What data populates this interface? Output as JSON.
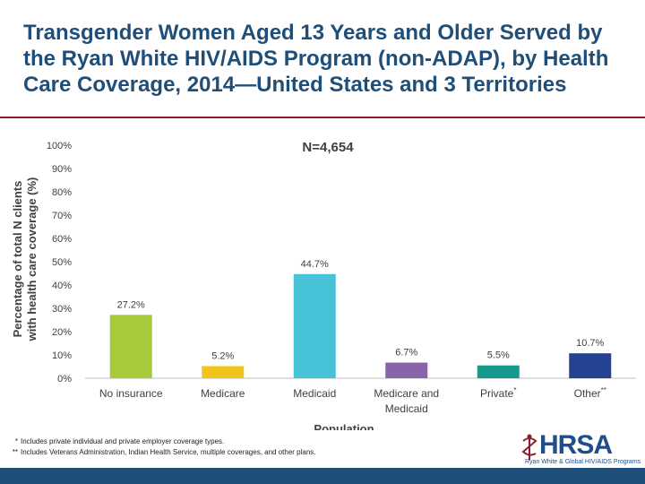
{
  "title": "Transgender Women Aged 13 Years and Older Served by the Ryan White HIV/AIDS Program (non-ADAP), by Health Care Coverage, 2014—United States and 3 Territories",
  "chart_data": {
    "type": "bar",
    "title": "N=4,654",
    "xlabel": "Population",
    "ylabel": "Percentage of total N clients with health care coverage (%)",
    "ylim": [
      0,
      100
    ],
    "yticks": [
      "0%",
      "10%",
      "20%",
      "30%",
      "40%",
      "50%",
      "60%",
      "70%",
      "80%",
      "90%",
      "100%"
    ],
    "categories": [
      "No insurance",
      "Medicare",
      "Medicaid",
      "Medicare and Medicaid",
      "Private",
      "Other"
    ],
    "category_marks": [
      "",
      "",
      "",
      "",
      "*",
      "**"
    ],
    "values": [
      27.2,
      5.2,
      44.7,
      6.7,
      5.5,
      10.7
    ],
    "value_labels": [
      "27.2%",
      "5.2%",
      "44.7%",
      "6.7%",
      "5.5%",
      "10.7%"
    ],
    "colors": [
      "#a6cb3a",
      "#f0c419",
      "#48c2d6",
      "#8a64a8",
      "#159a8c",
      "#24428f"
    ],
    "grid": false
  },
  "footnotes": [
    {
      "mark": "*",
      "text": "Includes private individual and private employer coverage types."
    },
    {
      "mark": "**",
      "text": "Includes Veterans Administration, Indian Health Service, multiple coverages, and other plans."
    }
  ],
  "logo": {
    "word": "HRSA",
    "subtitle": "Ryan White & Global HIV/AIDS Programs",
    "color": "#1f4e8c"
  }
}
